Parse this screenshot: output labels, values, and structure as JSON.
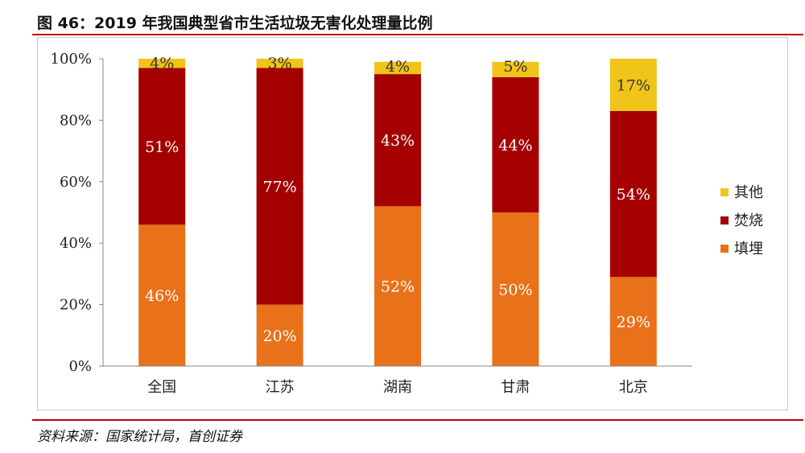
{
  "page": {
    "title": "图 46：2019 年我国典型省市生活垃圾无害化处理量比例",
    "source": "资料来源：国家统计局，首创证券"
  },
  "chart_data": {
    "type": "bar",
    "stacked": true,
    "categories": [
      "全国",
      "江苏",
      "湖南",
      "甘肃",
      "北京"
    ],
    "series": [
      {
        "name": "填埋",
        "color": "#e97119",
        "values": [
          46,
          20,
          52,
          50,
          29
        ]
      },
      {
        "name": "焚烧",
        "color": "#a50000",
        "values": [
          51,
          77,
          43,
          44,
          54
        ]
      },
      {
        "name": "其他",
        "color": "#f0c419",
        "values": [
          4,
          3,
          4,
          5,
          17
        ]
      }
    ],
    "data_labels": {
      "填埋": [
        "46%",
        "20%",
        "52%",
        "50%",
        "29%"
      ],
      "焚烧": [
        "51%",
        "77%",
        "43%",
        "44%",
        "54%"
      ],
      "其他": [
        "4%",
        "3%",
        "4%",
        "5%",
        "17%"
      ]
    },
    "ylim": [
      0,
      100
    ],
    "yticks": [
      "0%",
      "20%",
      "40%",
      "60%",
      "80%",
      "100%"
    ],
    "legend_position": "right",
    "legend_order": [
      "其他",
      "焚烧",
      "填埋"
    ],
    "grid": false
  }
}
